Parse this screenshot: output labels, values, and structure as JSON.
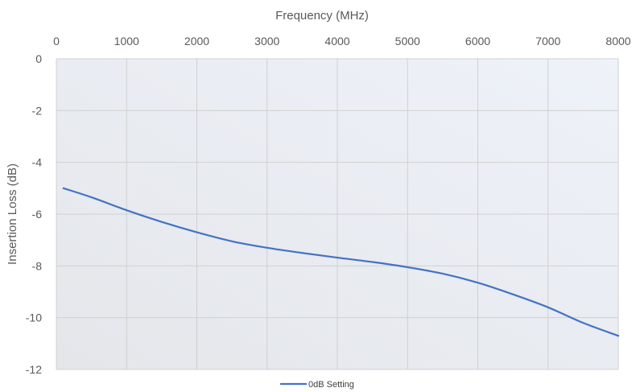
{
  "chart_data": {
    "type": "line",
    "xlabel": "Frequency (MHz)",
    "ylabel": "Insertion Loss (dB)",
    "xlim": [
      0,
      8000
    ],
    "ylim": [
      -12,
      0
    ],
    "x_ticks": [
      "0",
      "1000",
      "2000",
      "3000",
      "4000",
      "5000",
      "6000",
      "7000",
      "8000"
    ],
    "y_ticks": [
      "0",
      "-2",
      "-4",
      "-6",
      "-8",
      "-10",
      "-12"
    ],
    "x_axis_position": "top",
    "grid": true,
    "legend_position": "bottom",
    "series": [
      {
        "name": "0dB Setting",
        "color": "#4472C4",
        "x": [
          100,
          500,
          1000,
          1500,
          2000,
          2500,
          3000,
          3500,
          4000,
          4500,
          5000,
          5500,
          6000,
          6500,
          7000,
          7500,
          8000
        ],
        "y": [
          -5.0,
          -5.35,
          -5.85,
          -6.3,
          -6.7,
          -7.05,
          -7.3,
          -7.5,
          -7.68,
          -7.85,
          -8.05,
          -8.3,
          -8.65,
          -9.1,
          -9.6,
          -10.2,
          -10.7
        ]
      }
    ]
  }
}
